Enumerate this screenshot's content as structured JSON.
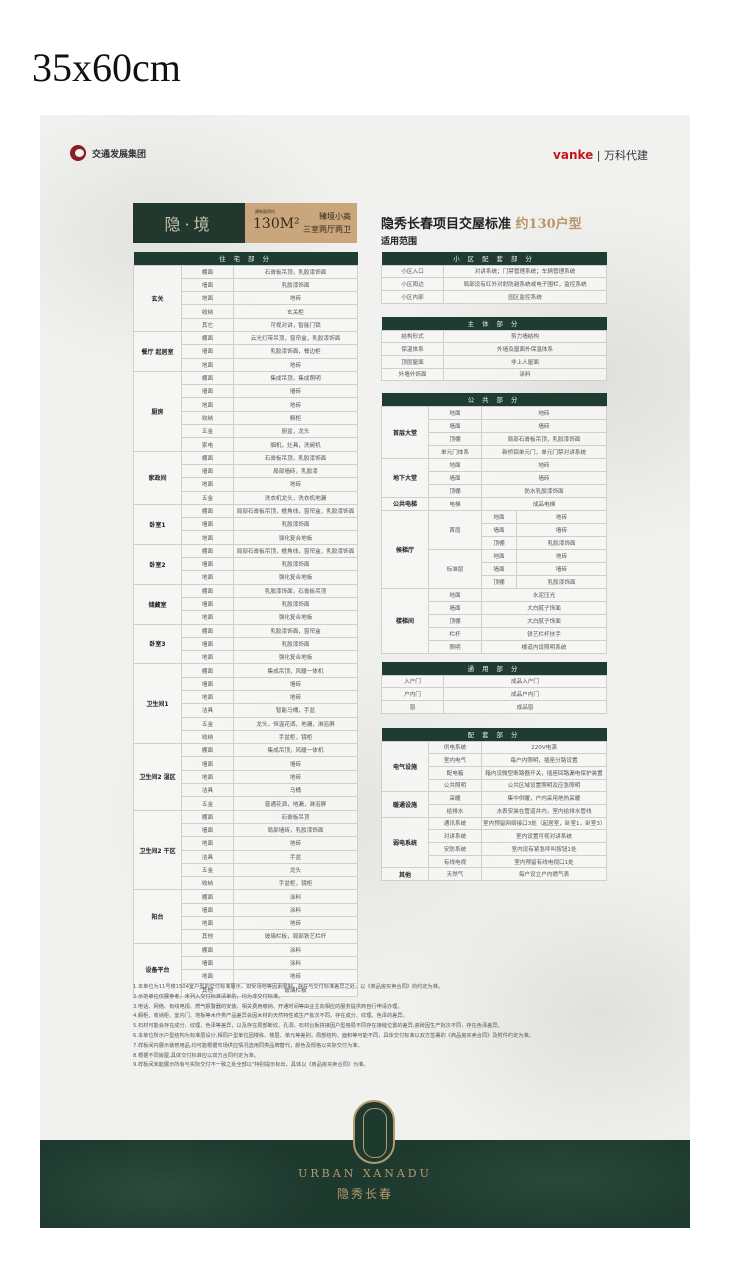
{
  "size_label": "35x60cm",
  "logos": {
    "left": "交通发展集团",
    "right_brand": "vanke",
    "right_text": "万科代建"
  },
  "banner": {
    "name": "隐·境",
    "area_label": "建筑面积约",
    "area": "130M²",
    "line1": "臻境小高",
    "line2": "三室两厅两卫"
  },
  "title": "隐秀长春项目交屋标准",
  "title_accent": "约130户型",
  "subtitle": "适用范围",
  "colors": {
    "header_green": "#1f3c32",
    "accent_gold": "#b8956a",
    "banner_tan": "#c9a67b"
  },
  "residential": {
    "header": "住 宅 部 分",
    "groups": [
      {
        "room": "玄关",
        "rows": [
          [
            "棚面",
            "石膏板吊顶，乳胶漆饰面"
          ],
          [
            "墙面",
            "乳胶漆饰面"
          ],
          [
            "地面",
            "地砖"
          ],
          [
            "收纳",
            "玄关柜"
          ],
          [
            "其它",
            "可视对讲，智能门锁"
          ]
        ]
      },
      {
        "room": "餐厅 起居室",
        "rows": [
          [
            "棚面",
            "云光灯带吊顶，窗帘盒，乳胶漆饰面"
          ],
          [
            "墙面",
            "乳胶漆饰面，餐边柜"
          ],
          [
            "地面",
            "地砖"
          ]
        ]
      },
      {
        "room": "厨房",
        "rows": [
          [
            "棚面",
            "集成吊顶，集成照明"
          ],
          [
            "墙面",
            "墙砖"
          ],
          [
            "地面",
            "地砖"
          ],
          [
            "收纳",
            "橱柜"
          ],
          [
            "五金",
            "厨盆，龙头"
          ],
          [
            "家电",
            "烟机，灶具，洗碗机"
          ]
        ]
      },
      {
        "room": "家政间",
        "rows": [
          [
            "棚面",
            "石膏板吊顶，乳胶漆饰面"
          ],
          [
            "墙面",
            "局部墙砖，乳胶漆"
          ],
          [
            "地面",
            "地砖"
          ],
          [
            "五金",
            "洗衣机龙头，洗衣机地漏"
          ]
        ]
      },
      {
        "room": "卧室1",
        "rows": [
          [
            "棚面",
            "局部石膏板吊顶，檐角线，窗帘盒，乳胶漆饰面"
          ],
          [
            "墙面",
            "乳胶漆饰面"
          ],
          [
            "地面",
            "强化复合地板"
          ]
        ]
      },
      {
        "room": "卧室2",
        "rows": [
          [
            "棚面",
            "局部石膏板吊顶，檐角线，窗帘盒，乳胶漆饰面"
          ],
          [
            "墙面",
            "乳胶漆饰面"
          ],
          [
            "地面",
            "强化复合地板"
          ]
        ]
      },
      {
        "room": "储藏室",
        "rows": [
          [
            "棚面",
            "乳胶漆饰面，石膏板吊顶"
          ],
          [
            "墙面",
            "乳胶漆饰面"
          ],
          [
            "地面",
            "强化复合地板"
          ]
        ]
      },
      {
        "room": "卧室3",
        "rows": [
          [
            "棚面",
            "乳胶漆饰面，窗帘盒"
          ],
          [
            "墙面",
            "乳胶漆饰面"
          ],
          [
            "地面",
            "强化复合地板"
          ]
        ]
      },
      {
        "room": "卫生间1",
        "rows": [
          [
            "棚面",
            "集成吊顶，风暖一体机"
          ],
          [
            "墙面",
            "墙砖"
          ],
          [
            "地面",
            "地砖"
          ],
          [
            "洁具",
            "智能马桶，手盆"
          ],
          [
            "五金",
            "龙头，恒温花洒，地漏，淋浴屏"
          ],
          [
            "收纳",
            "手盆柜，镜柜"
          ]
        ]
      },
      {
        "room": "卫生间2 湿区",
        "rows": [
          [
            "棚面",
            "集成吊顶，风暖一体机"
          ],
          [
            "墙面",
            "墙砖"
          ],
          [
            "地面",
            "地砖"
          ],
          [
            "洁具",
            "马桶"
          ],
          [
            "五金",
            "普通花洒，地漏，淋浴屏"
          ]
        ]
      },
      {
        "room": "卫生间2 干区",
        "rows": [
          [
            "棚面",
            "石膏板吊顶"
          ],
          [
            "墙面",
            "局部墙砖，乳胶漆饰面"
          ],
          [
            "地面",
            "地砖"
          ],
          [
            "洁具",
            "手盆"
          ],
          [
            "五金",
            "龙头"
          ],
          [
            "收纳",
            "手盆柜，镜柜"
          ]
        ]
      },
      {
        "room": "阳台",
        "rows": [
          [
            "棚面",
            "涂料"
          ],
          [
            "墙面",
            "涂料"
          ],
          [
            "地面",
            "地砖"
          ],
          [
            "其他",
            "玻璃栏板，局部铁艺栏杆"
          ]
        ]
      },
      {
        "room": "设备平台",
        "rows": [
          [
            "棚面",
            "涂料"
          ],
          [
            "墙面",
            "涂料"
          ],
          [
            "地面",
            "地砖"
          ],
          [
            "其他",
            "玻璃栏板"
          ]
        ]
      }
    ]
  },
  "community": {
    "header": "小 区 配 套 部 分",
    "rows": [
      [
        "小区入口",
        "对讲系统；门禁管理系统；车辆管理系统"
      ],
      [
        "小区周边",
        "局部设有红外对射防越系统或电子围栏，监控系统"
      ],
      [
        "小区内部",
        "园区监控系统"
      ]
    ]
  },
  "structure": {
    "header": "主 体 部 分",
    "rows": [
      [
        "结构形式",
        "剪力墙结构"
      ],
      [
        "保温体系",
        "外墙及屋面外保温体系"
      ],
      [
        "顶层屋面",
        "非上人屋面"
      ],
      [
        "外墙外饰面",
        "涂料"
      ]
    ]
  },
  "public": {
    "header": "公 共 部 分",
    "groups": [
      {
        "room": "首层大堂",
        "rows": [
          [
            "地面",
            "地砖"
          ],
          [
            "墙面",
            "墙砖"
          ],
          [
            "顶棚",
            "局部石膏板吊顶，乳胶漆饰面"
          ],
          [
            "单元门体系",
            "新桥铝单元门，单元门禁对讲系统"
          ]
        ]
      },
      {
        "room": "地下大堂",
        "rows": [
          [
            "地面",
            "地砖"
          ],
          [
            "墙面",
            "墙砖"
          ],
          [
            "顶棚",
            "防水乳胶漆饰面"
          ]
        ]
      },
      {
        "room": "公共电梯",
        "rows": [
          [
            "电梯",
            "成品电梯"
          ]
        ]
      },
      {
        "room": "候梯厅",
        "subs": [
          {
            "sub": "首层",
            "rows": [
              [
                "地面",
                "地砖"
              ],
              [
                "墙面",
                "墙砖"
              ],
              [
                "顶棚",
                "乳胶漆饰面"
              ]
            ]
          },
          {
            "sub": "标准层",
            "rows": [
              [
                "地面",
                "地砖"
              ],
              [
                "墙面",
                "墙砖"
              ],
              [
                "顶棚",
                "乳胶漆饰面"
              ]
            ]
          }
        ]
      },
      {
        "room": "楼梯间",
        "rows": [
          [
            "地面",
            "水泥压光"
          ],
          [
            "墙面",
            "大白腻子饰面"
          ],
          [
            "顶棚",
            "大白腻子饰面"
          ],
          [
            "栏杆",
            "铁艺栏杆扶手"
          ],
          [
            "照明",
            "楼道内设照明系统"
          ]
        ]
      }
    ]
  },
  "general": {
    "header": "通 用 部 分",
    "rows": [
      [
        "入户门",
        "成品入户门"
      ],
      [
        "户内门",
        "成品户内门"
      ],
      [
        "窗",
        "成品窗"
      ]
    ]
  },
  "facilities": {
    "header": "配 套 部 分",
    "groups": [
      {
        "room": "电气设施",
        "rows": [
          [
            "供电系统",
            "220V电源"
          ],
          [
            "室内电气",
            "每户内照明，插座分路设置"
          ],
          [
            "配电箱",
            "箱内设微型断路器开关，插座回路漏电保护装置"
          ],
          [
            "公共照明",
            "公共区域设置照明及应急照明"
          ]
        ]
      },
      {
        "room": "暖通设施",
        "rows": [
          [
            "采暖",
            "集中供暖，户内采用地热采暖"
          ],
          [
            "给排水",
            "水表安装在管道井内，室内给排水管线"
          ]
        ]
      },
      {
        "room": "弱电系统",
        "rows": [
          [
            "通讯系统",
            "室内预留网络接口3处（起居室，卧室1，卧室3）"
          ],
          [
            "对讲系统",
            "室内设置可视对讲系统"
          ],
          [
            "安防系统",
            "室内设有紧急呼叫按钮1处"
          ],
          [
            "有线电视",
            "室内预留有线电视口1处"
          ]
        ]
      },
      {
        "room": "其他",
        "rows": [
          [
            "天然气",
            "每户设立户内燃气表"
          ]
        ]
      }
    ]
  },
  "notes": [
    "1.本单位为11号楼1504室户型的交付标准展示，如受场地等因素限制，存在与交付标准差异之处，以《商品房买卖合同》的约定为准。",
    "2.示范单位仅展参考，未列入交付标准清单的，均为非交付标准。",
    "3.电话、网络、有线电视、燃气报警器的安装、相关费用缴纳、开通时间等由业主向相应的服务提供商自行申请办理。",
    "4.橱柜、收纳柜、室内门、地板等木作类产品差异会因木材的天然特性或生产批次不同，存在成分、纹理、色泽的差异。",
    "5.石材可能会存在成分、纹理、色泽等差异，以及存在局部断纹、孔洞、石材台板拼接因户型格局不同存在接缝位置的差异,瓷砖因生产批次不同，存在色泽差异。",
    "6.本单位所示户型结构为标准层设计,相同户型单位因楼栋、楼层、单元等差别，局部结构、面积等可能不同，具体交付标准以双方签署的《商品房买卖合同》及附件约定为准。",
    "7.样板间内展示装修用品,均可能根据市场供应情况选用同类品牌替代，颜色及规格以实际交付为准。",
    "8.根据不同房屋,具体交付标准应以双方合同约定为准。",
    "9.样板间未能展示所有与实际交付不一致之处全部以\"特别提示标出，具体以《商品房买卖合同》为准。"
  ],
  "brand": {
    "en": "URBAN XANADU",
    "cn": "隐秀长春"
  }
}
